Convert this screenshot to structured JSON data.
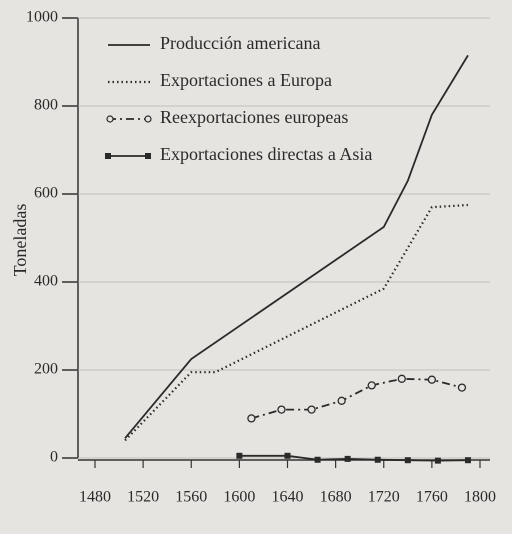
{
  "chart_data": {
    "type": "line",
    "ylabel": "Toneladas",
    "xlim": [
      1480,
      1800
    ],
    "xticks": [
      1480,
      1520,
      1560,
      1600,
      1640,
      1680,
      1720,
      1760,
      1800
    ],
    "ylim": [
      0,
      1000
    ],
    "yticks": [
      0,
      200,
      400,
      600,
      800,
      1000
    ],
    "grid": true,
    "legend": "upper left",
    "series": [
      {
        "name": "Producción americana",
        "color": "#2a2a2a",
        "dash": "solid",
        "marker": "none",
        "x": [
          1505,
          1560,
          1720,
          1740,
          1760,
          1790
        ],
        "values": [
          45,
          225,
          525,
          630,
          780,
          915
        ]
      },
      {
        "name": "Exportaciones a Europa",
        "color": "#2a2a2a",
        "dash": "dotted",
        "marker": "none",
        "x": [
          1505,
          1560,
          1580,
          1720,
          1760,
          1790
        ],
        "values": [
          40,
          195,
          195,
          385,
          570,
          575
        ]
      },
      {
        "name": "Reexportaciones europeas",
        "color": "#2a2a2a",
        "dash": "dashdot",
        "marker": "circle",
        "x": [
          1610,
          1635,
          1660,
          1685,
          1710,
          1735,
          1760,
          1785
        ],
        "values": [
          90,
          110,
          110,
          130,
          165,
          180,
          178,
          160
        ]
      },
      {
        "name": "Exportaciones directas a Asia",
        "color": "#2a2a2a",
        "dash": "solid",
        "marker": "square",
        "x": [
          1600,
          1640,
          1665,
          1690,
          1715,
          1740,
          1765,
          1790
        ],
        "values": [
          5,
          5,
          -4,
          -2,
          -4,
          -5,
          -6,
          -5
        ]
      }
    ]
  }
}
